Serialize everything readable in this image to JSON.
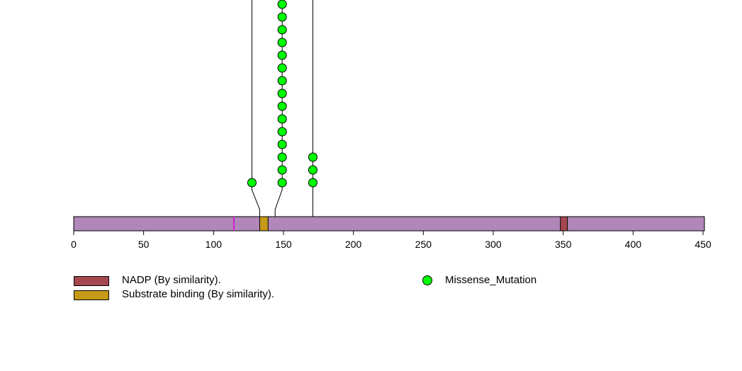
{
  "chart_data": {
    "type": "lollipop",
    "x_ticks": [
      0,
      50,
      100,
      150,
      200,
      250,
      300,
      350,
      400,
      450
    ],
    "xlim": [
      0,
      451
    ],
    "protein_length": 451,
    "protein_color": "#b087b8",
    "domains": [
      {
        "name": "NADP (By similarity).",
        "start": 348,
        "end": 353,
        "color": "#a5474e"
      },
      {
        "name": "Substrate binding (By similarity).",
        "start": 133,
        "end": 139,
        "color": "#c59a16"
      }
    ],
    "sites": [
      {
        "position": 114,
        "color": "#d020d0"
      }
    ],
    "mutations": [
      {
        "type": "Missense_Mutation",
        "position": 133,
        "count": 1
      },
      {
        "type": "Missense_Mutation",
        "position": 144,
        "count": 15
      },
      {
        "type": "Missense_Mutation",
        "position": 171,
        "count": 3
      }
    ],
    "mutation_color": "#00ff00"
  },
  "legend": {
    "domains": [
      {
        "label": "NADP (By similarity).",
        "color": "#a5474e"
      },
      {
        "label": "Substrate binding (By similarity).",
        "color": "#c59a16"
      }
    ],
    "mutation_label": "Missense_Mutation"
  }
}
